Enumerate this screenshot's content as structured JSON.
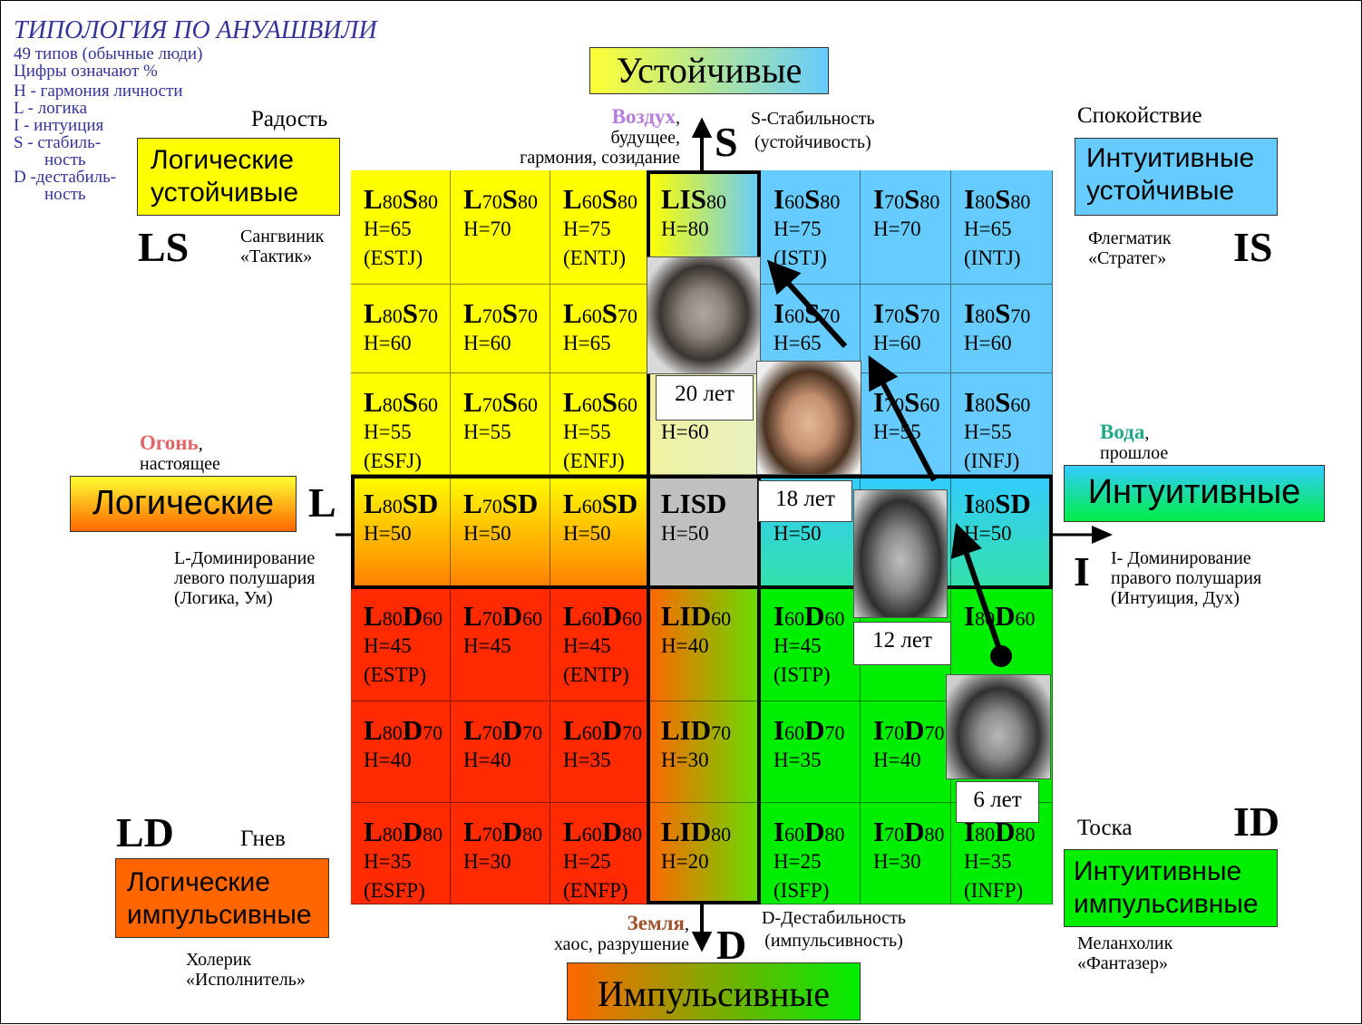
{
  "legend": {
    "title": "ТИПОЛОГИЯ ПО АНУАШВИЛИ",
    "lines": [
      "49 типов (обычные люди)",
      "Цифры означают %",
      "H - гармония личности",
      "L - логика",
      "I -  интуиция",
      "S - стабиль-",
      "ность",
      "D -дестабиль-",
      "ность"
    ]
  },
  "headers": {
    "top": "Устойчивые",
    "left": "Логические",
    "right": "Интуитивные",
    "bottom": "Импульсивные"
  },
  "corners": {
    "ls": {
      "box": [
        "Логические",
        "устойчивые"
      ],
      "code": "LS",
      "emotion": "Радость",
      "temper": [
        "Сангвиник",
        "«Тактик»"
      ]
    },
    "is": {
      "box": [
        "Интуитивные",
        "устойчивые"
      ],
      "code": "IS",
      "emotion": "Спокойствие",
      "temper": [
        "Флегматик",
        "«Стратег»"
      ]
    },
    "ld": {
      "box": [
        "Логические",
        "импульсивные"
      ],
      "code": "LD",
      "emotion": "Гнев",
      "temper": [
        "Холерик",
        "«Исполнитель»"
      ]
    },
    "id": {
      "box": [
        "Интуитивные",
        "импульсивные"
      ],
      "code": "ID",
      "emotion": "Тоска",
      "temper": [
        "Меланхолик",
        "«Фантазер»"
      ]
    }
  },
  "axes": {
    "s_letter": "S",
    "d_letter": "D",
    "l_letter": "L",
    "i_letter": "I",
    "s_desc": [
      "S-Стабильность",
      "(устойчивость)"
    ],
    "d_desc": [
      "D-Дестабильность",
      "(импульсивность)"
    ],
    "l_desc": [
      "L-Доминирование",
      "левого полушария",
      "(Логика, Ум)"
    ],
    "i_desc": [
      "I- Доминирование",
      "правого полушария",
      "(Интуиция, Дух)"
    ]
  },
  "elements": {
    "air": {
      "name": "Воздух",
      "rest": ",",
      "lines": [
        "будущее,",
        "гармония, созидание"
      ],
      "color": "#b57edc"
    },
    "fire": {
      "name": "Огонь",
      "rest": ",",
      "lines": [
        "настоящее"
      ],
      "color": "#e06666"
    },
    "water": {
      "name": "Вода",
      "rest": ",",
      "lines": [
        "прошлое"
      ],
      "color": "#22aa88"
    },
    "earth": {
      "name": "Земля",
      "rest": ",",
      "lines": [
        "хаос, разрушение"
      ],
      "color": "#a0522d"
    }
  },
  "cells": [
    {
      "c1": "L",
      "n1": "80",
      "c2": "S",
      "n2": "80",
      "h": "H=65",
      "t": "(ESTJ)"
    },
    {
      "c1": "L",
      "n1": "70",
      "c2": "S",
      "n2": "80",
      "h": "H=70",
      "t": ""
    },
    {
      "c1": "L",
      "n1": "60",
      "c2": "S",
      "n2": "80",
      "h": "H=75",
      "t": "(ENTJ)"
    },
    {
      "c1": "LIS",
      "n1": "",
      "c2": "",
      "n2": "80",
      "h": "H=80",
      "t": ""
    },
    {
      "c1": "I",
      "n1": "60",
      "c2": "S",
      "n2": "80",
      "h": "H=75",
      "t": "(ISTJ)"
    },
    {
      "c1": "I",
      "n1": "70",
      "c2": "S",
      "n2": "80",
      "h": "H=70",
      "t": ""
    },
    {
      "c1": "I",
      "n1": "80",
      "c2": "S",
      "n2": "80",
      "h": "H=65",
      "t": "(INTJ)"
    },
    {
      "c1": "L",
      "n1": "80",
      "c2": "S",
      "n2": "70",
      "h": "H=60",
      "t": ""
    },
    {
      "c1": "L",
      "n1": "70",
      "c2": "S",
      "n2": "70",
      "h": "H=60",
      "t": ""
    },
    {
      "c1": "L",
      "n1": "60",
      "c2": "S",
      "n2": "70",
      "h": "H=65",
      "t": ""
    },
    {
      "c1": "",
      "n1": "",
      "c2": "",
      "n2": "",
      "h": "",
      "t": ""
    },
    {
      "c1": "I",
      "n1": "60",
      "c2": "S",
      "n2": "70",
      "h": "H=65",
      "t": ""
    },
    {
      "c1": "I",
      "n1": "70",
      "c2": "S",
      "n2": "70",
      "h": "H=60",
      "t": ""
    },
    {
      "c1": "I",
      "n1": "80",
      "c2": "S",
      "n2": "70",
      "h": "H=60",
      "t": ""
    },
    {
      "c1": "L",
      "n1": "80",
      "c2": "S",
      "n2": "60",
      "h": "H=55",
      "t": "(ESFJ)"
    },
    {
      "c1": "L",
      "n1": "70",
      "c2": "S",
      "n2": "60",
      "h": "H=55",
      "t": ""
    },
    {
      "c1": "L",
      "n1": "60",
      "c2": "S",
      "n2": "60",
      "h": "H=55",
      "t": "(ENFJ)"
    },
    {
      "c1": "",
      "n1": "",
      "c2": "",
      "n2": "",
      "h": "H=60",
      "t": ""
    },
    {
      "c1": "",
      "n1": "",
      "c2": "",
      "n2": "",
      "h": "",
      "t": ""
    },
    {
      "c1": "I",
      "n1": "70",
      "c2": "S",
      "n2": "60",
      "h": "H=55",
      "t": ""
    },
    {
      "c1": "I",
      "n1": "80",
      "c2": "S",
      "n2": "60",
      "h": "H=55",
      "t": "(INFJ)"
    },
    {
      "c1": "L",
      "n1": "80",
      "c2": "SD",
      "n2": "",
      "h": "H=50",
      "t": ""
    },
    {
      "c1": "L",
      "n1": "70",
      "c2": "SD",
      "n2": "",
      "h": "H=50",
      "t": ""
    },
    {
      "c1": "L",
      "n1": "60",
      "c2": "SD",
      "n2": "",
      "h": "H=50",
      "t": ""
    },
    {
      "c1": "LISD",
      "n1": "",
      "c2": "",
      "n2": "",
      "h": "H=50",
      "t": ""
    },
    {
      "c1": "",
      "n1": "",
      "c2": "",
      "n2": "",
      "h": "H=50",
      "t": ""
    },
    {
      "c1": "",
      "n1": "",
      "c2": "",
      "n2": "",
      "h": "",
      "t": ""
    },
    {
      "c1": "I",
      "n1": "80",
      "c2": "SD",
      "n2": "",
      "h": "H=50",
      "t": ""
    },
    {
      "c1": "L",
      "n1": "80",
      "c2": "D",
      "n2": "60",
      "h": "H=45",
      "t": "(ESTP)"
    },
    {
      "c1": "L",
      "n1": "70",
      "c2": "D",
      "n2": "60",
      "h": "H=45",
      "t": ""
    },
    {
      "c1": "L",
      "n1": "60",
      "c2": "D",
      "n2": "60",
      "h": "H=45",
      "t": "(ENTP)"
    },
    {
      "c1": "LID",
      "n1": "",
      "c2": "",
      "n2": "60",
      "h": "H=40",
      "t": ""
    },
    {
      "c1": "I",
      "n1": "60",
      "c2": "D",
      "n2": "60",
      "h": "H=45",
      "t": "(ISTP)"
    },
    {
      "c1": "",
      "n1": "",
      "c2": "",
      "n2": "",
      "h": "",
      "t": ""
    },
    {
      "c1": "I",
      "n1": "80",
      "c2": "D",
      "n2": "60",
      "h": "",
      "t": ""
    },
    {
      "c1": "L",
      "n1": "80",
      "c2": "D",
      "n2": "70",
      "h": "H=40",
      "t": ""
    },
    {
      "c1": "L",
      "n1": "70",
      "c2": "D",
      "n2": "70",
      "h": "H=40",
      "t": ""
    },
    {
      "c1": "L",
      "n1": "60",
      "c2": "D",
      "n2": "70",
      "h": "H=35",
      "t": ""
    },
    {
      "c1": "LID",
      "n1": "",
      "c2": "",
      "n2": "70",
      "h": "H=30",
      "t": ""
    },
    {
      "c1": "I",
      "n1": "60",
      "c2": "D",
      "n2": "70",
      "h": "H=35",
      "t": ""
    },
    {
      "c1": "I",
      "n1": "70",
      "c2": "D",
      "n2": "70",
      "h": "H=40",
      "t": ""
    },
    {
      "c1": "",
      "n1": "",
      "c2": "",
      "n2": "",
      "h": "",
      "t": ""
    },
    {
      "c1": "L",
      "n1": "80",
      "c2": "D",
      "n2": "80",
      "h": "H=35",
      "t": "(ESFP)"
    },
    {
      "c1": "L",
      "n1": "70",
      "c2": "D",
      "n2": "80",
      "h": "H=30",
      "t": ""
    },
    {
      "c1": "L",
      "n1": "60",
      "c2": "D",
      "n2": "80",
      "h": "H=25",
      "t": "(ENFP)"
    },
    {
      "c1": "LID",
      "n1": "",
      "c2": "",
      "n2": "80",
      "h": "H=20",
      "t": ""
    },
    {
      "c1": "I",
      "n1": "60",
      "c2": "D",
      "n2": "80",
      "h": "H=25",
      "t": "(ISFP)"
    },
    {
      "c1": "I",
      "n1": "70",
      "c2": "D",
      "n2": "80",
      "h": "H=30",
      "t": ""
    },
    {
      "c1": "I",
      "n1": "80",
      "c2": "D",
      "n2": "80",
      "h": "H=35",
      "t": "(INFP)"
    }
  ],
  "ages": {
    "a20": "20 лет",
    "a18": "18 лет",
    "a12": "12 лет",
    "a6": "6 лет"
  },
  "colors": {
    "yellow": "#ffff00",
    "blue": "#66ccff",
    "orange": "#ff6600",
    "red": "#ff2a00",
    "green": "#00ee00",
    "gray": "#c0c0c0"
  }
}
